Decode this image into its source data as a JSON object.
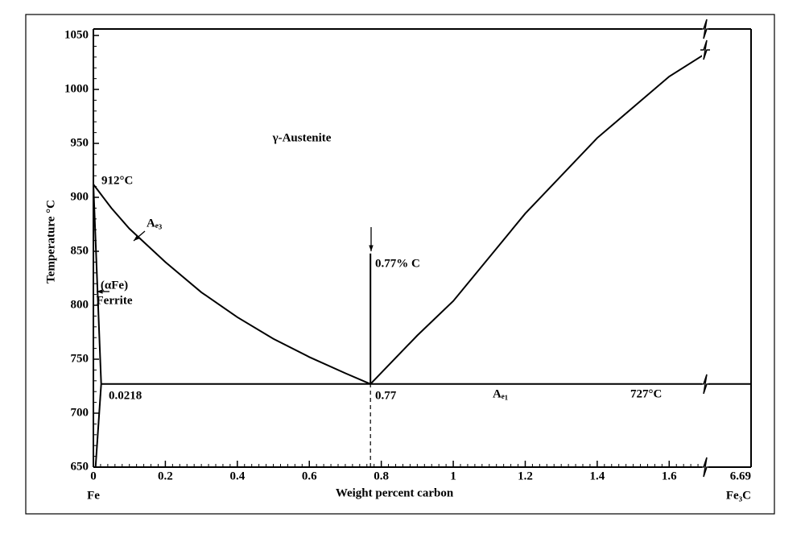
{
  "chart_data": {
    "type": "line",
    "x_label": "Weight percent carbon",
    "y_label": "Temperature °C",
    "xlim": [
      0,
      6.69
    ],
    "x_break": 1.7,
    "xticks": [
      0,
      0.2,
      0.4,
      0.6,
      0.8,
      1,
      1.2,
      1.4,
      1.6,
      6.69
    ],
    "x_end_labels": [
      "Fe",
      "Fe₃C"
    ],
    "ylim": [
      650,
      1056
    ],
    "yticks": [
      650,
      700,
      750,
      800,
      850,
      900,
      950,
      1000,
      1050
    ],
    "series": [
      {
        "color": "#000000",
        "x": [
          0,
          0.05,
          0.1,
          0.2,
          0.3,
          0.4,
          0.5,
          0.6,
          0.7,
          0.77
        ],
        "values": [
          912,
          890,
          871,
          840,
          812,
          789,
          769,
          752,
          737,
          727
        ]
      },
      {
        "color": "#000000",
        "x": [
          0.77,
          0.9,
          1.0,
          1.2,
          1.4,
          1.6,
          1.7
        ],
        "values": [
          727,
          772,
          804,
          885,
          955,
          1012,
          1033
        ]
      },
      {
        "color": "#000000",
        "x": [
          0.0218,
          6.69
        ],
        "values": [
          727,
          727
        ]
      },
      {
        "color": "#000000",
        "x": [
          0,
          0.0218
        ],
        "values": [
          912,
          727
        ]
      },
      {
        "color": "#000000",
        "x": [
          0.0218,
          0.006
        ],
        "values": [
          727,
          650
        ]
      },
      {
        "color": "#000000",
        "x": [
          0.77,
          0.77
        ],
        "values": [
          727,
          848
        ]
      },
      {
        "color": "#000000",
        "dashed": true,
        "x": [
          0.77,
          0.77
        ],
        "values": [
          650,
          727
        ]
      }
    ],
    "annotations": [
      "γ-Austenite",
      "912°C",
      "Aₑ₃",
      "0.77% C",
      "(αFe)",
      "Ferrite",
      "0.0218",
      "0.77",
      "Aₑ₁",
      "727°C"
    ]
  }
}
